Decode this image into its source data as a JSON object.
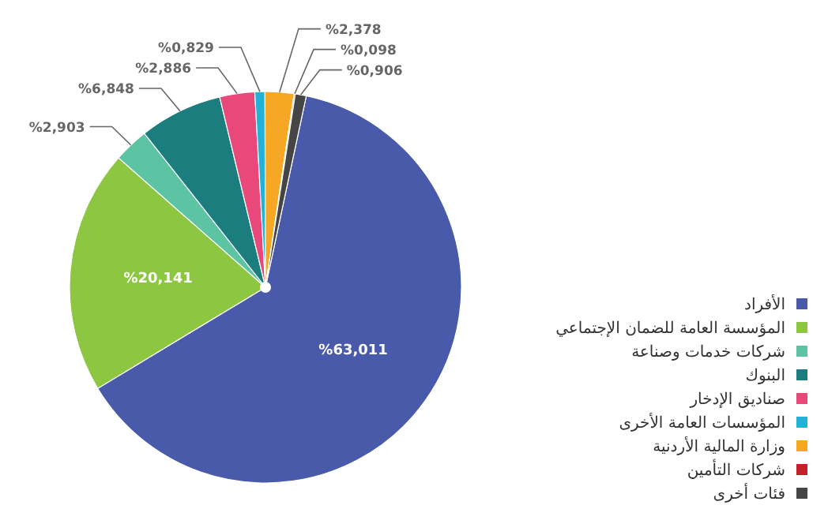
{
  "chart_data": {
    "type": "pie",
    "categories": [
      "الأفراد",
      "المؤسسة العامة للضمان الإجتماعي",
      "شركات خدمات وصناعة",
      "البنوك",
      "صناديق الإدخار",
      "المؤسسات العامة الأخرى",
      "وزارة المالية الأردنية",
      "شركات التأمين",
      "فئات أخرى"
    ],
    "values": [
      63.011,
      20.141,
      2.903,
      6.848,
      2.886,
      0.829,
      2.378,
      0.098,
      0.906
    ],
    "colors": [
      "#4a5aab",
      "#8dc641",
      "#5cc4a2",
      "#1b7d7d",
      "#e8497a",
      "#22b2d8",
      "#f6a724",
      "#c3202b",
      "#454545"
    ],
    "value_labels": [
      "%63,011",
      "%20,141",
      "%2,903",
      "%6,848",
      "%2,886",
      "%0,829",
      "%2,378",
      "%0,098",
      "%0,906"
    ],
    "legend": "right"
  }
}
